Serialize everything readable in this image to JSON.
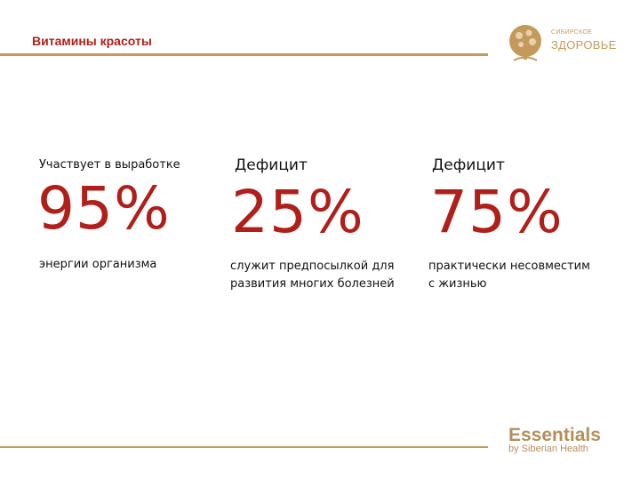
{
  "header": {
    "title": "Витамины красоты"
  },
  "logo": {
    "line1": "СИБИРСКОЕ",
    "line2": "ЗДОРОВЬЕ"
  },
  "stats": [
    {
      "label": "Участвует в выработке",
      "percent": "95%",
      "desc_line1": "энергии организма",
      "desc_line2": ""
    },
    {
      "label": "Дефицит",
      "percent": "25%",
      "desc_line1": "служит предпосылкой для",
      "desc_line2": "развития многих болезней"
    },
    {
      "label": "Дефицит",
      "percent": "75%",
      "desc_line1": "практически несовместим",
      "desc_line2": "с жизнью"
    }
  ],
  "footer": {
    "brand": "Essentials",
    "sub": "by Siberian Health"
  },
  "colors": {
    "accent_red": "#b0201b",
    "gold": "#c49a5b"
  }
}
